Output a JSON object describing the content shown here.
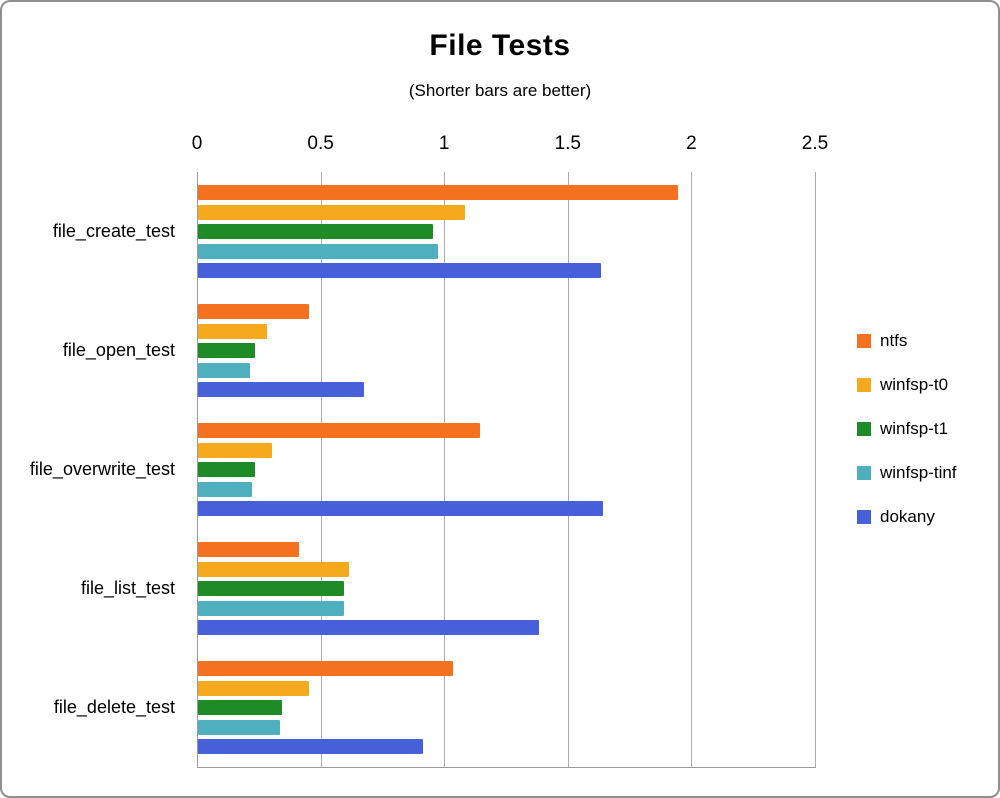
{
  "chart_data": {
    "type": "bar",
    "orientation": "horizontal",
    "title": "File Tests",
    "subtitle": "(Shorter bars are better)",
    "axis": {
      "min": 0,
      "max": 2.5,
      "position": "top",
      "grid": true,
      "ticks": [
        0,
        0.5,
        1,
        1.5,
        2,
        2.5
      ],
      "tick_labels": [
        "0",
        "0.5",
        "1",
        "1.5",
        "2",
        "2.5"
      ]
    },
    "categories": [
      "file_create_test",
      "file_open_test",
      "file_overwrite_test",
      "file_list_test",
      "file_delete_test"
    ],
    "series": [
      {
        "name": "ntfs",
        "color": "#F4711F",
        "values": [
          1.94,
          0.45,
          1.14,
          0.41,
          1.03
        ]
      },
      {
        "name": "winfsp-t0",
        "color": "#F5A91D",
        "values": [
          1.08,
          0.28,
          0.3,
          0.61,
          0.45
        ]
      },
      {
        "name": "winfsp-t1",
        "color": "#1E8B27",
        "values": [
          0.95,
          0.23,
          0.23,
          0.59,
          0.34
        ]
      },
      {
        "name": "winfsp-tinf",
        "color": "#4FAFBE",
        "values": [
          0.97,
          0.21,
          0.22,
          0.59,
          0.33
        ]
      },
      {
        "name": "dokany",
        "color": "#4660D9",
        "values": [
          1.63,
          0.67,
          1.64,
          1.38,
          0.91
        ]
      }
    ],
    "legend": {
      "position": "right",
      "entries": [
        "ntfs",
        "winfsp-t0",
        "winfsp-t1",
        "winfsp-tinf",
        "dokany"
      ]
    }
  }
}
